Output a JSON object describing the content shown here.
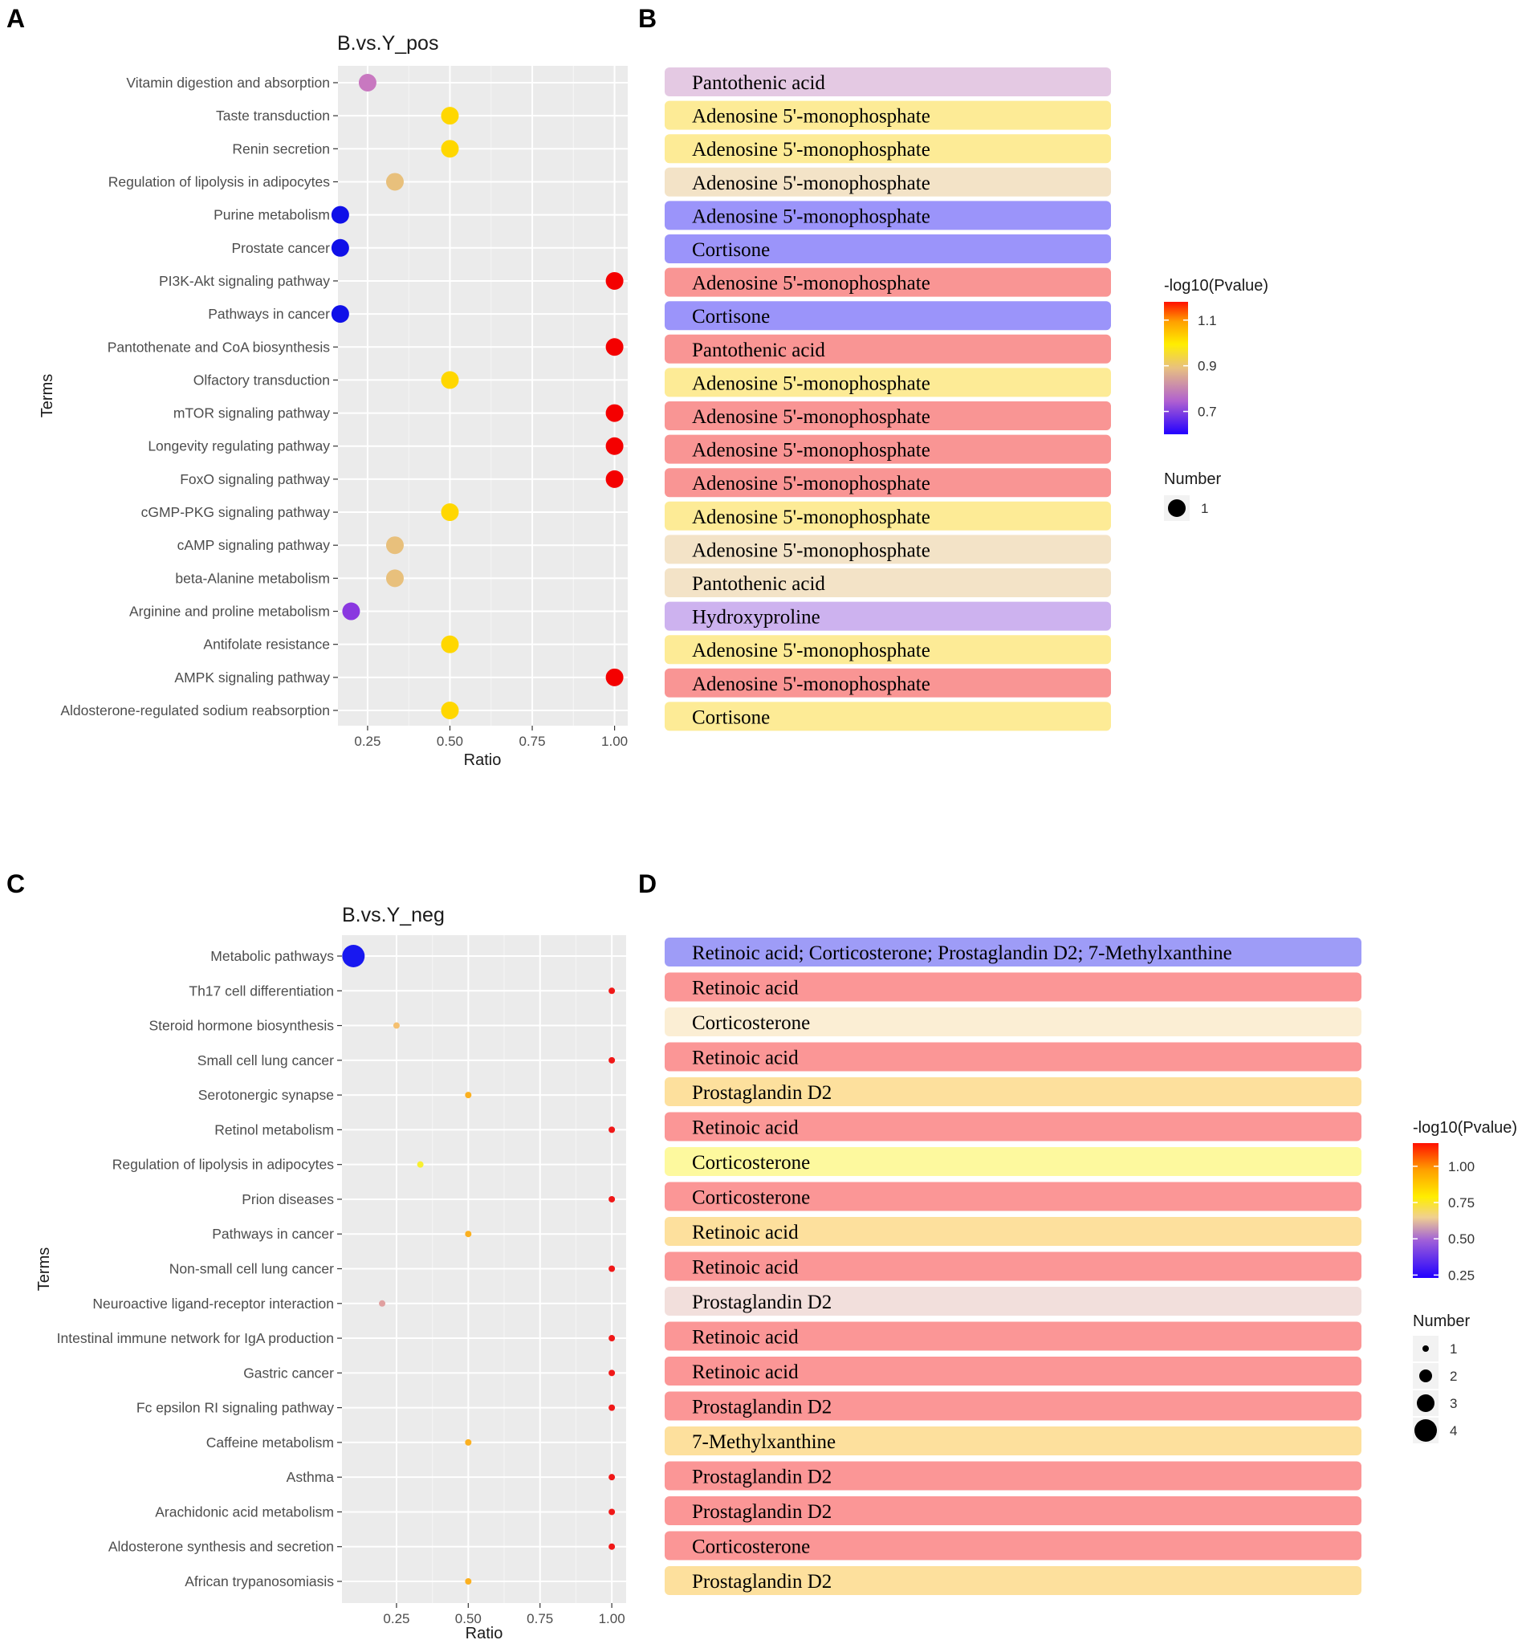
{
  "panels": {
    "A": "A",
    "B": "B",
    "C": "C",
    "D": "D"
  },
  "chart_data": [
    {
      "type": "scatter",
      "panel": "A",
      "title": "B.vs.Y_pos",
      "xlabel": "Ratio",
      "ylabel": "Terms",
      "xlim": [
        0.16,
        1.04
      ],
      "xticks": [
        {
          "value": 0.25,
          "label": "0.25"
        },
        {
          "value": 0.5,
          "label": "0.50"
        },
        {
          "value": 0.75,
          "label": "0.75"
        },
        {
          "value": 1.0,
          "label": "1.00"
        }
      ],
      "terms": [
        "Vitamin digestion and absorption",
        "Taste transduction",
        "Renin secretion",
        "Regulation of lipolysis in adipocytes",
        "Purine metabolism",
        "Prostate cancer",
        "PI3K-Akt signaling pathway",
        "Pathways in cancer",
        "Pantothenate and CoA biosynthesis",
        "Olfactory transduction",
        "mTOR signaling pathway",
        "Longevity regulating pathway",
        "FoxO signaling pathway",
        "cGMP-PKG signaling pathway",
        "cAMP signaling pathway",
        "beta-Alanine metabolism",
        "Arginine and proline metabolism",
        "Antifolate resistance",
        "AMPK signaling pathway",
        "Aldosterone-regulated sodium reabsorption"
      ],
      "ratio": [
        0.25,
        0.5,
        0.5,
        0.333,
        0.167,
        0.167,
        1.0,
        0.167,
        1.0,
        0.5,
        1.0,
        1.0,
        1.0,
        0.5,
        0.333,
        0.333,
        0.2,
        0.5,
        1.0,
        0.5
      ],
      "number": [
        1,
        1,
        1,
        1,
        1,
        1,
        1,
        1,
        1,
        1,
        1,
        1,
        1,
        1,
        1,
        1,
        1,
        1,
        1,
        1
      ],
      "colors": [
        "#c878c0",
        "#ffd700",
        "#ffd700",
        "#e8c07c",
        "#1010e8",
        "#1010e8",
        "#f40000",
        "#1010e8",
        "#f40000",
        "#ffd700",
        "#f40000",
        "#f40000",
        "#f40000",
        "#ffd700",
        "#e8c07c",
        "#e8c07c",
        "#8a38e0",
        "#ffd700",
        "#f40000",
        "#ffd700"
      ],
      "legend": {
        "color_title": "-log10(Pvalue)",
        "color_ticks": [
          {
            "value": 1.1,
            "label": "1.1"
          },
          {
            "value": 0.9,
            "label": "0.9"
          },
          {
            "value": 0.7,
            "label": "0.7"
          }
        ],
        "color_range": [
          0.6,
          1.18
        ],
        "size_title": "Number",
        "size_items": [
          {
            "value": 1,
            "label": "1"
          }
        ]
      }
    },
    {
      "type": "scatter",
      "panel": "C",
      "title": "B.vs.Y_neg",
      "xlabel": "Ratio",
      "ylabel": "Terms",
      "xlim": [
        0.06,
        1.05
      ],
      "xticks": [
        {
          "value": 0.25,
          "label": "0.25"
        },
        {
          "value": 0.5,
          "label": "0.50"
        },
        {
          "value": 0.75,
          "label": "0.75"
        },
        {
          "value": 1.0,
          "label": "1.00"
        }
      ],
      "terms": [
        "Metabolic pathways",
        "Th17 cell differentiation",
        "Steroid hormone biosynthesis",
        "Small cell lung cancer",
        "Serotonergic synapse",
        "Retinol metabolism",
        "Regulation of lipolysis in adipocytes",
        "Prion diseases",
        "Pathways in cancer",
        "Non-small cell lung cancer",
        "Neuroactive ligand-receptor interaction",
        "Intestinal immune network for IgA production",
        "Gastric cancer",
        "Fc epsilon RI signaling pathway",
        "Caffeine metabolism",
        "Asthma",
        "Arachidonic acid metabolism",
        "Aldosterone synthesis and secretion",
        "African trypanosomiasis"
      ],
      "ratio": [
        0.1,
        1.0,
        0.25,
        1.0,
        0.5,
        1.0,
        0.333,
        1.0,
        0.5,
        1.0,
        0.2,
        1.0,
        1.0,
        1.0,
        0.5,
        1.0,
        1.0,
        1.0,
        0.5
      ],
      "number": [
        4,
        1,
        1,
        1,
        1,
        1,
        1,
        1,
        1,
        1,
        1,
        1,
        1,
        1,
        1,
        1,
        1,
        1,
        1
      ],
      "colors": [
        "#1818f0",
        "#f01818",
        "#f5c070",
        "#f01818",
        "#fbb020",
        "#f01818",
        "#f8f030",
        "#f01818",
        "#fbb020",
        "#f01818",
        "#e0a0a0",
        "#f01818",
        "#f01818",
        "#f01818",
        "#fbb020",
        "#f01818",
        "#f01818",
        "#f01818",
        "#fbb020"
      ],
      "legend": {
        "color_title": "-log10(Pvalue)",
        "color_ticks": [
          {
            "value": 1.0,
            "label": "1.00"
          },
          {
            "value": 0.75,
            "label": "0.75"
          },
          {
            "value": 0.5,
            "label": "0.50"
          },
          {
            "value": 0.25,
            "label": "0.25"
          }
        ],
        "color_range": [
          0.23,
          1.16
        ],
        "size_title": "Number",
        "size_items": [
          {
            "value": 1,
            "label": "1"
          },
          {
            "value": 2,
            "label": "2"
          },
          {
            "value": 3,
            "label": "3"
          },
          {
            "value": 4,
            "label": "4"
          }
        ]
      }
    },
    {
      "type": "table",
      "panel": "B",
      "rows": [
        {
          "text": "Pantothenic acid",
          "color": "#e4c9e3"
        },
        {
          "text": "Adenosine 5'-monophosphate",
          "color": "#fdeb96"
        },
        {
          "text": "Adenosine 5'-monophosphate",
          "color": "#fdeb96"
        },
        {
          "text": "Adenosine 5'-monophosphate",
          "color": "#f3e3c7"
        },
        {
          "text": "Adenosine 5'-monophosphate",
          "color": "#9b94fa"
        },
        {
          "text": "Cortisone",
          "color": "#9b94fa"
        },
        {
          "text": "Adenosine 5'-monophosphate",
          "color": "#f99594"
        },
        {
          "text": "Cortisone",
          "color": "#9b94fa"
        },
        {
          "text": "Pantothenic acid",
          "color": "#f99594"
        },
        {
          "text": "Adenosine 5'-monophosphate",
          "color": "#fdeb96"
        },
        {
          "text": "Adenosine 5'-monophosphate",
          "color": "#f99594"
        },
        {
          "text": "Adenosine 5'-monophosphate",
          "color": "#f99594"
        },
        {
          "text": "Adenosine 5'-monophosphate",
          "color": "#f99594"
        },
        {
          "text": "Adenosine 5'-monophosphate",
          "color": "#fdeb96"
        },
        {
          "text": "Adenosine 5'-monophosphate",
          "color": "#f3e3c7"
        },
        {
          "text": "Pantothenic acid",
          "color": "#f3e3c7"
        },
        {
          "text": "Hydroxyproline",
          "color": "#cdb2ef"
        },
        {
          "text": "Adenosine 5'-monophosphate",
          "color": "#fdeb96"
        },
        {
          "text": "Adenosine 5'-monophosphate",
          "color": "#f99594"
        },
        {
          "text": "Cortisone",
          "color": "#fdeb96"
        }
      ]
    },
    {
      "type": "table",
      "panel": "D",
      "rows": [
        {
          "text": "Retinoic acid; Corticosterone; Prostaglandin D2; 7-Methylxanthine",
          "color": "#9e9cf7"
        },
        {
          "text": "Retinoic acid",
          "color": "#fb9696"
        },
        {
          "text": "Corticosterone",
          "color": "#fbeed4"
        },
        {
          "text": "Retinoic acid",
          "color": "#fb9696"
        },
        {
          "text": "Prostaglandin D2",
          "color": "#fde09d"
        },
        {
          "text": "Retinoic acid",
          "color": "#fb9696"
        },
        {
          "text": "Corticosterone",
          "color": "#fdf99e"
        },
        {
          "text": "Corticosterone",
          "color": "#fb9696"
        },
        {
          "text": "Retinoic acid",
          "color": "#fde09d"
        },
        {
          "text": "Retinoic acid",
          "color": "#fb9696"
        },
        {
          "text": "Prostaglandin D2",
          "color": "#f2dfdc"
        },
        {
          "text": "Retinoic acid",
          "color": "#fb9696"
        },
        {
          "text": "Retinoic acid",
          "color": "#fb9696"
        },
        {
          "text": "Prostaglandin D2",
          "color": "#fb9696"
        },
        {
          "text": "7-Methylxanthine",
          "color": "#fde09d"
        },
        {
          "text": "Prostaglandin D2",
          "color": "#fb9696"
        },
        {
          "text": "Prostaglandin D2",
          "color": "#fb9696"
        },
        {
          "text": "Corticosterone",
          "color": "#fb9696"
        },
        {
          "text": "Prostaglandin D2",
          "color": "#fde09d"
        }
      ]
    }
  ]
}
